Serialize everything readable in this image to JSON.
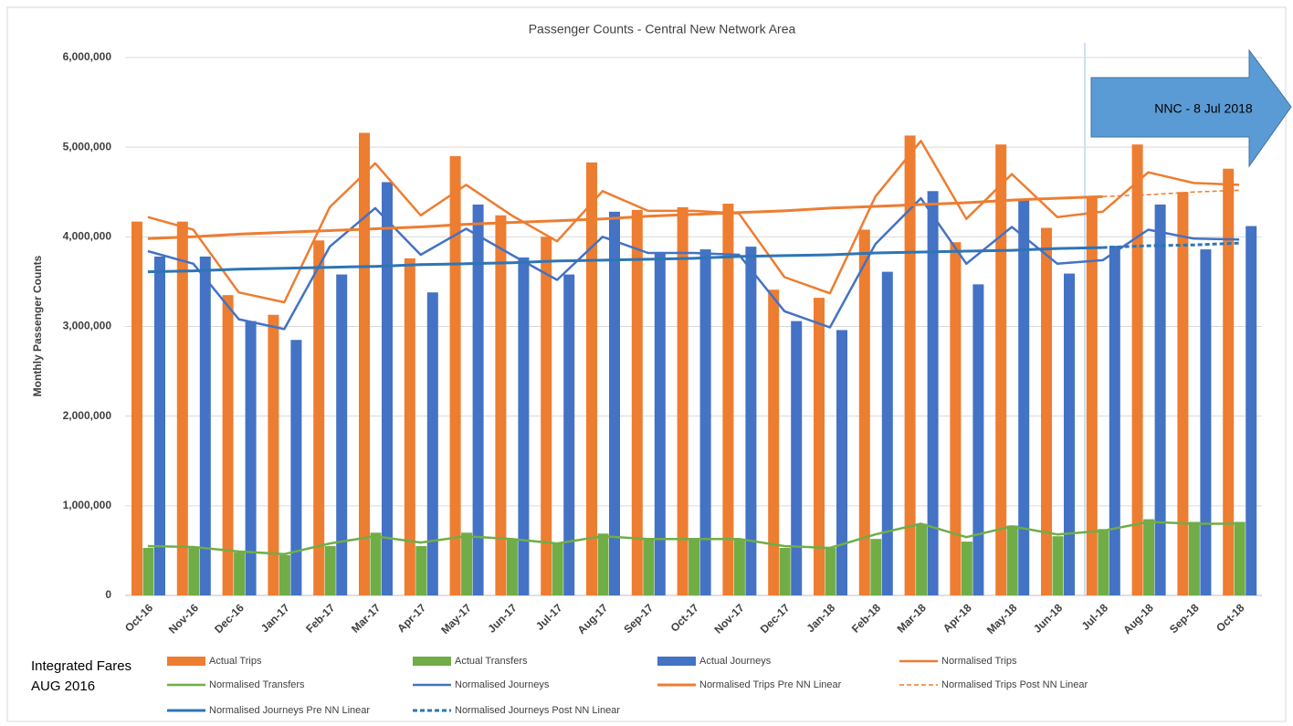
{
  "chart_data": {
    "type": "combo",
    "title": "Passenger Counts - Central New Network Area",
    "y_label": "Monthly Passenger Counts",
    "annotation": "NNC -  8 Jul 2018",
    "side_note": [
      "Integrated Fares",
      "AUG 2016"
    ],
    "categories": [
      "Oct-16",
      "Nov-16",
      "Dec-16",
      "Jan-17",
      "Feb-17",
      "Mar-17",
      "Apr-17",
      "May-17",
      "Jun-17",
      "Jul-17",
      "Aug-17",
      "Sep-17",
      "Oct-17",
      "Nov-17",
      "Dec-17",
      "Jan-18",
      "Feb-18",
      "Mar-18",
      "Apr-18",
      "May-18",
      "Jun-18",
      "Jul-18",
      "Aug-18",
      "Sep-18",
      "Oct-18"
    ],
    "ylim": [
      0,
      6000000
    ],
    "yticks": [
      0,
      {
        "value": 1000000,
        "label": "1,000,000"
      },
      {
        "value": 2000000,
        "label": "2,000,000"
      },
      {
        "value": 3000000,
        "label": "3,000,000"
      },
      {
        "value": 4000000,
        "label": "4,000,000"
      },
      {
        "value": 5000000,
        "label": "5,000,000"
      },
      {
        "value": 6000000,
        "label": "6,000,000"
      }
    ],
    "grid": true,
    "series": [
      {
        "name": "Actual Trips",
        "mark": "bar",
        "color": "#ed7d31",
        "values": [
          4170000,
          4170000,
          3350000,
          3130000,
          3960000,
          5160000,
          3760000,
          4900000,
          4240000,
          4000000,
          4830000,
          4300000,
          4330000,
          4370000,
          3410000,
          3320000,
          4080000,
          5130000,
          3940000,
          5030000,
          4100000,
          4450000,
          5030000,
          4500000,
          4760000
        ]
      },
      {
        "name": "Actual Transfers",
        "mark": "bar",
        "color": "#70ad47",
        "values": [
          530000,
          530000,
          480000,
          450000,
          550000,
          700000,
          550000,
          700000,
          630000,
          580000,
          690000,
          630000,
          630000,
          630000,
          530000,
          530000,
          630000,
          800000,
          600000,
          780000,
          660000,
          740000,
          850000,
          820000,
          820000
        ]
      },
      {
        "name": "Actual Journeys",
        "mark": "bar",
        "color": "#4472c4",
        "values": [
          3780000,
          3780000,
          3060000,
          2850000,
          3580000,
          4610000,
          3380000,
          4360000,
          3770000,
          3580000,
          4280000,
          3820000,
          3860000,
          3890000,
          3060000,
          2960000,
          3610000,
          4510000,
          3470000,
          4420000,
          3590000,
          3900000,
          4360000,
          3860000,
          4120000
        ]
      },
      {
        "name": "Normalised Trips",
        "mark": "line",
        "color": "#ed7d31",
        "width": 2.5,
        "values": [
          4220000,
          4080000,
          3380000,
          3270000,
          4330000,
          4820000,
          4240000,
          4580000,
          4240000,
          3950000,
          4510000,
          4290000,
          4290000,
          4260000,
          3550000,
          3370000,
          4450000,
          5070000,
          4200000,
          4700000,
          4220000,
          4280000,
          4720000,
          4600000,
          4580000
        ]
      },
      {
        "name": "Normalised Transfers",
        "mark": "line",
        "color": "#70ad47",
        "width": 2.5,
        "values": [
          550000,
          540000,
          490000,
          460000,
          580000,
          660000,
          590000,
          660000,
          630000,
          580000,
          660000,
          630000,
          630000,
          630000,
          550000,
          530000,
          680000,
          800000,
          650000,
          770000,
          680000,
          720000,
          820000,
          800000,
          800000
        ]
      },
      {
        "name": "Normalised Journeys",
        "mark": "line",
        "color": "#4472c4",
        "width": 2.5,
        "values": [
          3840000,
          3700000,
          3080000,
          2970000,
          3890000,
          4320000,
          3800000,
          4090000,
          3800000,
          3520000,
          4000000,
          3820000,
          3820000,
          3800000,
          3170000,
          2990000,
          3920000,
          4430000,
          3700000,
          4110000,
          3700000,
          3740000,
          4080000,
          3980000,
          3970000
        ]
      },
      {
        "name": "Normalised Trips Pre NN Linear",
        "mark": "line",
        "color": "#ed7d31",
        "width": 3,
        "values": [
          3980000,
          4000000,
          4030000,
          4050000,
          4070000,
          4090000,
          4110000,
          4140000,
          4160000,
          4180000,
          4200000,
          4230000,
          4250000,
          4270000,
          4290000,
          4320000,
          4340000,
          4360000,
          4380000,
          4410000,
          4430000,
          4450000,
          null,
          null,
          null
        ]
      },
      {
        "name": "Normalised Trips Post NN Linear",
        "mark": "line",
        "color": "#ed7d31",
        "width": 1.5,
        "dashed": true,
        "values": [
          null,
          null,
          null,
          null,
          null,
          null,
          null,
          null,
          null,
          null,
          null,
          null,
          null,
          null,
          null,
          null,
          null,
          null,
          null,
          null,
          null,
          4450000,
          4470000,
          4500000,
          4520000
        ]
      },
      {
        "name": "Normalised Journeys Pre NN Linear",
        "mark": "line",
        "color": "#2e75b6",
        "width": 3,
        "values": [
          3610000,
          3620000,
          3640000,
          3650000,
          3660000,
          3670000,
          3690000,
          3700000,
          3710000,
          3730000,
          3740000,
          3750000,
          3760000,
          3780000,
          3790000,
          3800000,
          3820000,
          3830000,
          3840000,
          3850000,
          3870000,
          3880000,
          null,
          null,
          null
        ]
      },
      {
        "name": "Normalised Journeys Post NN Linear",
        "mark": "line",
        "color": "#2e75b6",
        "width": 3,
        "dashed": true,
        "values": [
          null,
          null,
          null,
          null,
          null,
          null,
          null,
          null,
          null,
          null,
          null,
          null,
          null,
          null,
          null,
          null,
          null,
          null,
          null,
          null,
          null,
          3880000,
          3900000,
          3910000,
          3930000
        ]
      }
    ]
  }
}
